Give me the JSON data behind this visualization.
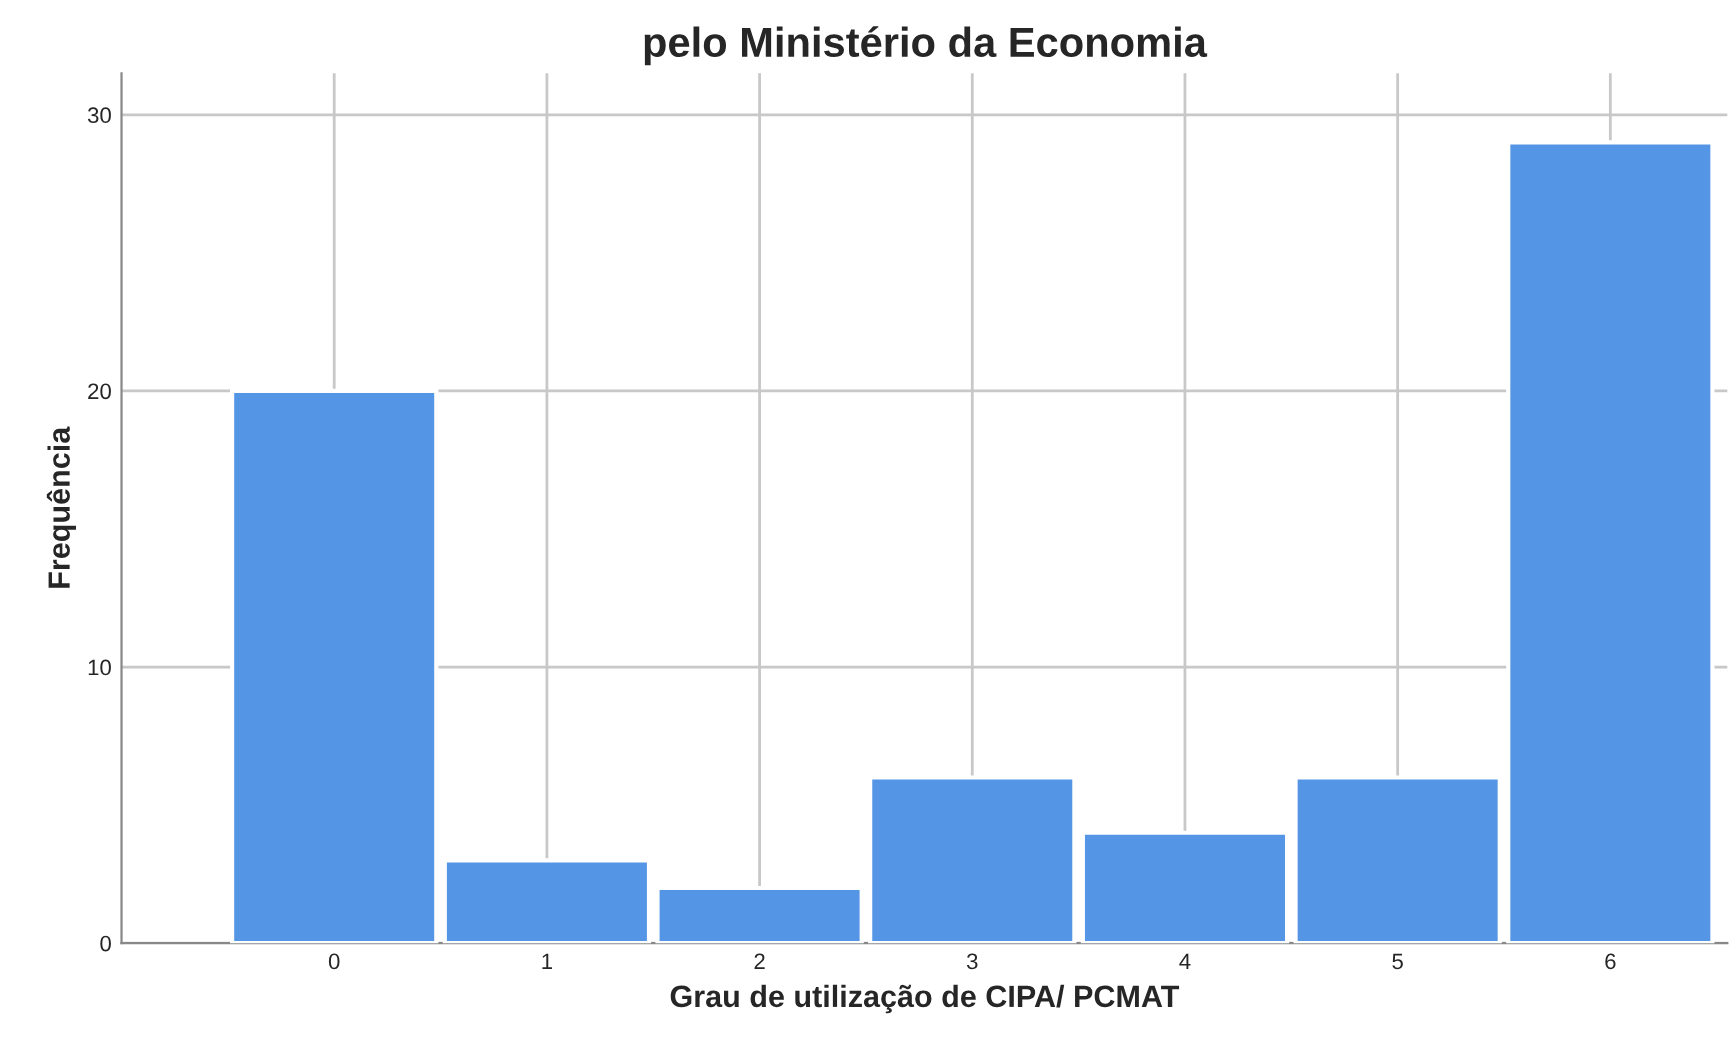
{
  "chart_data": {
    "type": "bar",
    "title": "pelo Ministério da Economia",
    "xlabel": "Grau de utilização de CIPA/ PCMAT",
    "ylabel": "Frequência",
    "categories": [
      "0",
      "1",
      "2",
      "3",
      "4",
      "5",
      "6"
    ],
    "values": [
      20,
      3,
      2,
      6,
      4,
      6,
      29
    ],
    "color": "#5495e5",
    "ylim": [
      0,
      31.5
    ],
    "yticks": [
      0,
      10,
      20,
      30
    ],
    "grid": true
  }
}
